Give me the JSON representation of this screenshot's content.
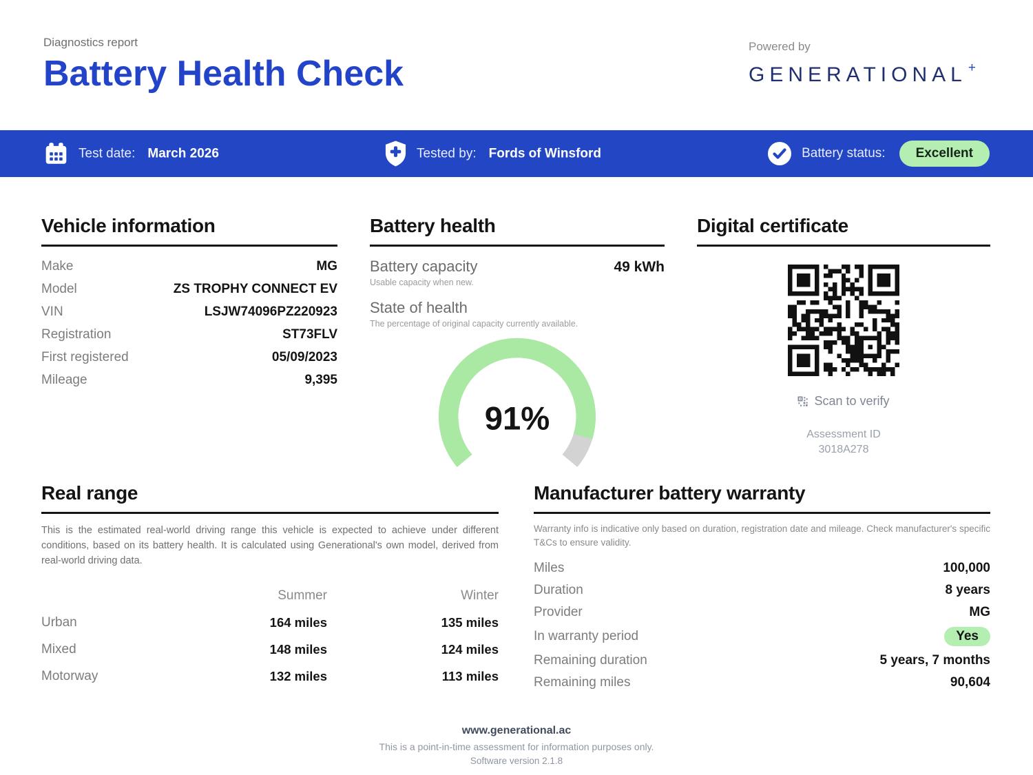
{
  "header": {
    "kicker": "Diagnostics report",
    "title": "Battery Health Check",
    "powered_by": "Powered by",
    "brand": "GENERATIONAL",
    "brand_plus": "+"
  },
  "status_bar": {
    "test_date_label": "Test date:",
    "test_date": "March 2026",
    "tested_by_label": "Tested by:",
    "tested_by": "Fords of Winsford",
    "battery_status_label": "Battery status:",
    "battery_status": "Excellent"
  },
  "vehicle_information": {
    "heading": "Vehicle information",
    "rows": [
      {
        "label": "Make",
        "value": "MG"
      },
      {
        "label": "Model",
        "value": "ZS TROPHY CONNECT EV"
      },
      {
        "label": "VIN",
        "value": "LSJW74096PZ220923"
      },
      {
        "label": "Registration",
        "value": "ST73FLV"
      },
      {
        "label": "First registered",
        "value": "05/09/2023"
      },
      {
        "label": "Mileage",
        "value": "9,395"
      }
    ]
  },
  "battery_health": {
    "heading": "Battery health",
    "capacity_label": "Battery capacity",
    "capacity_value": "49 kWh",
    "capacity_note": "Usable capacity when new.",
    "soh_label": "State of health",
    "soh_note": "The percentage of original capacity currently available.",
    "soh_pct": 91,
    "soh_display": "91%"
  },
  "digital_certificate": {
    "heading": "Digital certificate",
    "scan_label": "Scan to verify",
    "assessment_id_label": "Assessment ID",
    "assessment_id": "3018A278"
  },
  "real_range": {
    "heading": "Real range",
    "description": "This is the estimated real-world driving range this vehicle is expected to achieve under different conditions, based on its battery health. It is calculated using Generational's own model, derived from real-world driving data.",
    "columns": {
      "summer": "Summer",
      "winter": "Winter"
    },
    "rows": [
      {
        "label": "Urban",
        "summer": "164 miles",
        "winter": "135 miles"
      },
      {
        "label": "Mixed",
        "summer": "148 miles",
        "winter": "124 miles"
      },
      {
        "label": "Motorway",
        "summer": "132 miles",
        "winter": "113 miles"
      }
    ]
  },
  "warranty": {
    "heading": "Manufacturer battery warranty",
    "description": "Warranty info is indicative only based on duration, registration date and mileage. Check manufacturer's specific T&Cs to ensure validity.",
    "rows": [
      {
        "label": "Miles",
        "value": "100,000"
      },
      {
        "label": "Duration",
        "value": "8 years"
      },
      {
        "label": "Provider",
        "value": "MG"
      },
      {
        "label": "In warranty period",
        "value": "Yes"
      },
      {
        "label": "Remaining duration",
        "value": "5 years, 7 months"
      },
      {
        "label": "Remaining miles",
        "value": "90,604"
      }
    ]
  },
  "footer": {
    "website": "www.generational.ac",
    "disclaimer": "This is a point-in-time assessment for information purposes only.",
    "version": "Software version 2.1.8"
  },
  "colors": {
    "accent_blue": "#2346c4",
    "brand_navy": "#202f6d",
    "status_green": "#b5eeb1",
    "gauge_green": "#a9e9a3",
    "gauge_gray": "#d3d3d3"
  },
  "icons": {
    "calendar": "calendar-icon",
    "shield_plus": "shield-plus-icon",
    "check_circle": "check-circle-icon",
    "qr_scan": "qr-scan-icon",
    "qr_code": "qr-code"
  }
}
